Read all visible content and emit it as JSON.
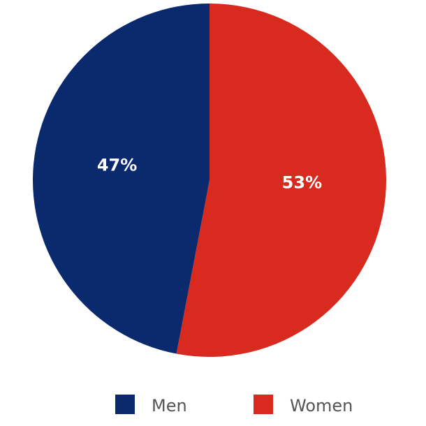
{
  "chart_data": {
    "type": "pie",
    "categories": [
      "Men",
      "Women"
    ],
    "values": [
      47,
      53
    ],
    "value_labels": [
      "47%",
      "53%"
    ],
    "colors": [
      "#0b2a6e",
      "#d92a1f"
    ]
  }
}
